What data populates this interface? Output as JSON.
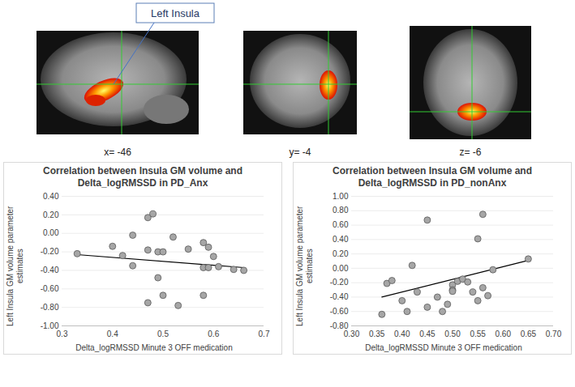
{
  "brain_panels": {
    "annotation": "Left Insula",
    "slice_labels": [
      "x= -46",
      "y= -4",
      "z= -6"
    ]
  },
  "chart_data": [
    {
      "type": "scatter",
      "title": "Correlation between Insula GM volume and Delta_logRMSSD in PD_Anx",
      "x_label": "Delta_logRMSSD Minute 3 OFF medication",
      "y_label": "Left Insula GM volume parameter estimates",
      "x": [
        0.33,
        0.4,
        0.42,
        0.44,
        0.44,
        0.47,
        0.48,
        0.47,
        0.49,
        0.49,
        0.5,
        0.47,
        0.5,
        0.52,
        0.53,
        0.55,
        0.58,
        0.58,
        0.58,
        0.59,
        0.6,
        0.61,
        0.64,
        0.66,
        0.59
      ],
      "values": [
        -0.22,
        -0.14,
        -0.24,
        -0.02,
        -0.35,
        0.17,
        0.21,
        -0.18,
        -0.48,
        -0.2,
        -0.2,
        -0.75,
        -0.67,
        -0.04,
        -0.78,
        -0.17,
        -0.1,
        -0.37,
        -0.67,
        -0.15,
        -0.25,
        -0.36,
        -0.39,
        -0.4,
        -0.37
      ],
      "trend": {
        "x": [
          0.33,
          0.66
        ],
        "values": [
          -0.23,
          -0.37
        ]
      },
      "color": "#a6a6a6",
      "marker": "circle",
      "xlim": [
        0.3,
        0.7
      ],
      "xticks": [
        0.3,
        0.4,
        0.5,
        0.6,
        0.7
      ],
      "ylim": [
        -1,
        0.4
      ],
      "yticks": [
        {
          "value": -1,
          "label": "-1.00"
        },
        {
          "value": -0.8,
          "label": "-0.80"
        },
        {
          "value": -0.6,
          "label": "-0.60"
        },
        {
          "value": -0.4,
          "label": "-0.40"
        },
        {
          "value": -0.2,
          "label": "-0.20"
        },
        {
          "value": 0,
          "label": "0.00"
        },
        {
          "value": 0.2,
          "label": "0.20"
        },
        {
          "value": 0.4,
          "label": "0.40"
        }
      ],
      "grid": "y"
    },
    {
      "type": "scatter",
      "title": "Correlation between Insula GM volume and Delta_logRMSSD in PD_nonAnx",
      "x_label": "Delta_logRMSSD Minute 3 OFF medication",
      "y_label": "Left Insula GM volume parameter estimates",
      "x": [
        0.36,
        0.37,
        0.38,
        0.4,
        0.41,
        0.42,
        0.43,
        0.45,
        0.45,
        0.47,
        0.48,
        0.49,
        0.5,
        0.5,
        0.5,
        0.51,
        0.52,
        0.53,
        0.54,
        0.55,
        0.55,
        0.56,
        0.56,
        0.57,
        0.58,
        0.65
      ],
      "values": [
        -0.64,
        -0.21,
        -0.17,
        -0.45,
        -0.6,
        0.04,
        -0.33,
        0.67,
        -0.54,
        -0.4,
        -0.6,
        -0.5,
        -0.23,
        -0.3,
        -0.32,
        -0.18,
        -0.15,
        -0.19,
        -0.33,
        -0.45,
        0.41,
        0.75,
        -0.27,
        -0.38,
        -0.02,
        0.13
      ],
      "trend": {
        "x": [
          0.36,
          0.65
        ],
        "values": [
          -0.4,
          0.11
        ]
      },
      "color": "#a6a6a6",
      "marker": "circle",
      "xlim": [
        0.3,
        0.7
      ],
      "xticks": [
        {
          "value": 0.3,
          "label": "0.30"
        },
        {
          "value": 0.35,
          "label": "0.35"
        },
        {
          "value": 0.4,
          "label": "0.40"
        },
        {
          "value": 0.45,
          "label": "0.45"
        },
        {
          "value": 0.5,
          "label": "0.50"
        },
        {
          "value": 0.55,
          "label": "0.55"
        },
        {
          "value": 0.6,
          "label": "0.60"
        },
        {
          "value": 0.65,
          "label": "0.65"
        },
        {
          "value": 0.7,
          "label": "0.70"
        }
      ],
      "ylim": [
        -0.8,
        1
      ],
      "yticks": [
        {
          "value": -0.8,
          "label": "-0.80"
        },
        {
          "value": -0.6,
          "label": "-0.60"
        },
        {
          "value": -0.4,
          "label": "-0.40"
        },
        {
          "value": -0.2,
          "label": "-0.20"
        },
        {
          "value": 0,
          "label": "0.00"
        },
        {
          "value": 0.2,
          "label": "0.20"
        },
        {
          "value": 0.4,
          "label": "0.40"
        },
        {
          "value": 0.6,
          "label": "0.60"
        },
        {
          "value": 0.8,
          "label": "0.80"
        },
        {
          "value": 1,
          "label": "1.00"
        }
      ],
      "grid": "y"
    }
  ]
}
